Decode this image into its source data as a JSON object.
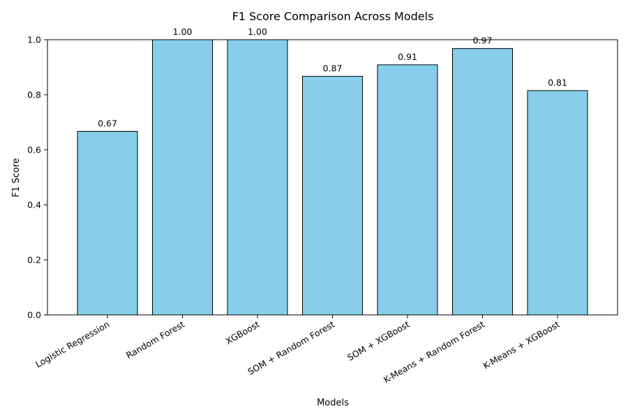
{
  "chart_data": {
    "type": "bar",
    "title": "F1 Score Comparison Across Models",
    "xlabel": "Models",
    "ylabel": "F1 Score",
    "categories": [
      "Logistic Regression",
      "Random Forest",
      "XGBoost",
      "SOM + Random Forest",
      "SOM + XGBoost",
      "K-Means + Random Forest",
      "K-Means + XGBoost"
    ],
    "values": [
      0.667,
      1.0,
      1.0,
      0.867,
      0.909,
      0.968,
      0.815
    ],
    "data_labels": [
      "0.67",
      "1.00",
      "1.00",
      "0.87",
      "0.91",
      "0.97",
      "0.81"
    ],
    "ylim": [
      0,
      1.0
    ],
    "yticks": [
      0.0,
      0.2,
      0.4,
      0.6,
      0.8,
      1.0
    ],
    "ytick_labels": [
      "0.0",
      "0.2",
      "0.4",
      "0.6",
      "0.8",
      "1.0"
    ],
    "grid": false,
    "legend": "none",
    "bar_color": "#87CEEB",
    "bar_edge_color": "#000000"
  }
}
